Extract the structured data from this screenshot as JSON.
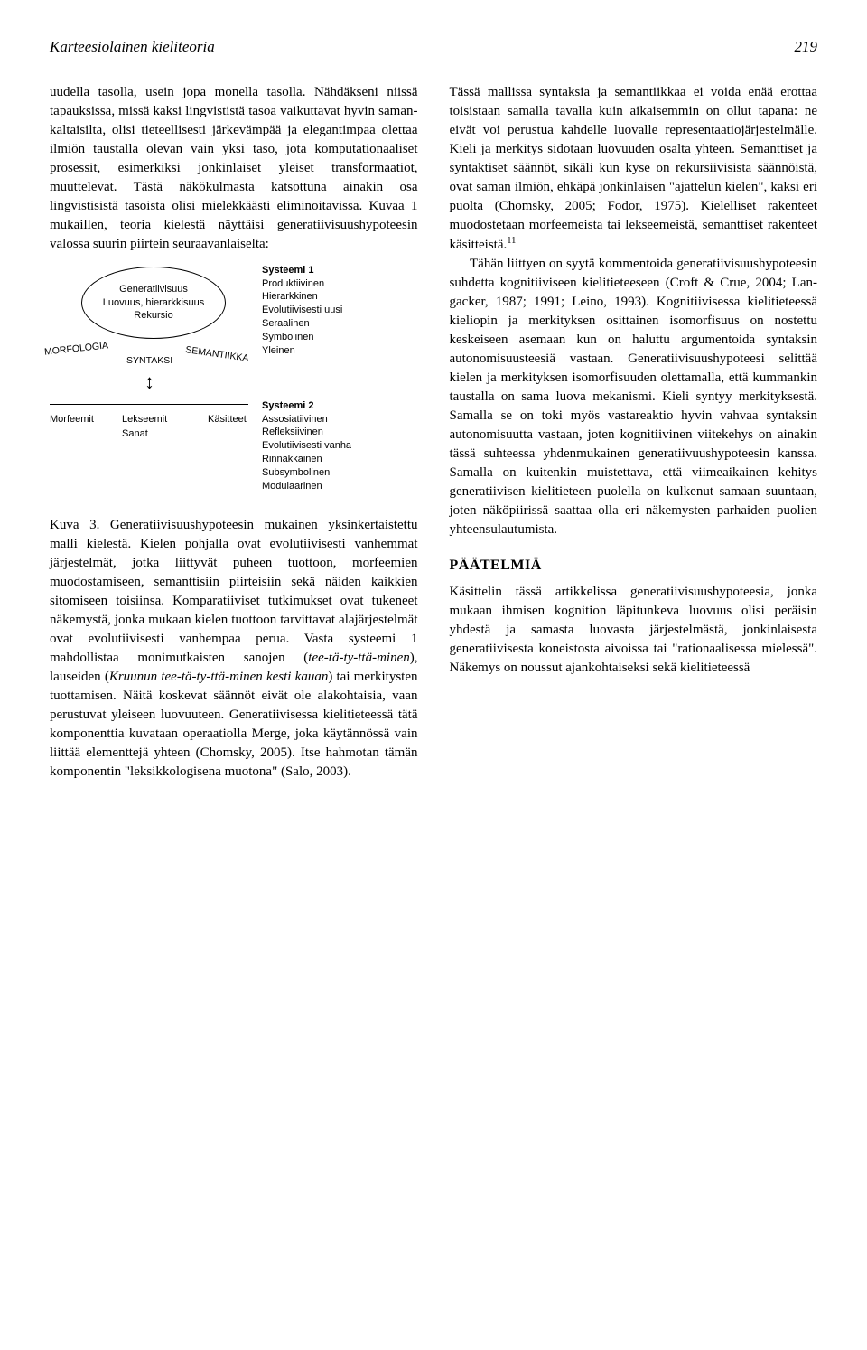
{
  "header": {
    "title": "Karteesiolainen kieliteoria",
    "page": "219"
  },
  "col1": {
    "p1": "uudella tasolla, usein jopa monella tasolla. Nähdäkseni niissä tapauksissa, missä kaksi lingvististä tasoa vaikuttavat hyvin saman­kaltaisilta, olisi tieteellisesti järkevämpää ja elegantimpaa olettaa ilmiön taustalla ole­van vain yksi taso, jota komputationaaliset prosessit, esimerkiksi jonkinlaiset yleiset transformaatiot, muuttelevat. Tästä näkö­kulmasta katsottuna ainakin osa lingvistisistä tasoista olisi mielekkäästi eliminoitavissa. Kuvaa 1 mukaillen, teoria kielestä näyttäisi generatiivisuushypoteesin valossa suurin piirtein seuraavanlaiselta:",
    "caption_lead": "Kuva 3.",
    "caption_body": " Generatiivisuushypoteesin mukainen yksinkertaistettu malli kielestä. Kielen pohjalla ovat evolutiivisesti vanhemmat järjestelmät, jotka liittyvät puheen tuottoon, morfeemien muodostamiseen, semanttisiin piirteisiin sekä näiden kaikkien sitomiseen toisiinsa. Komparatiiviset tutkimukset ovat tukeneet näkemystä, jonka mukaan kielen tuottoon tarvittavat alajärjestelmät ovat evolutiivisesti vanhempaa perua. Vasta systeemi 1 mahdollistaa monimutkaisten sanojen (",
    "caption_it1": "tee-tä-ty-ttä-minen",
    "caption_mid1": "), lauseiden (",
    "caption_it2": "Kruunun tee-tä-ty-ttä-minen kesti kauan",
    "caption_mid2": ") tai merkitysten tuottamisen. Näitä koskevat säännöt eivät ole ala­kohtaisia, vaan perustuvat yleiseen luovuuteen. Generatiivisessa kielitieteessä tätä komponenttia kuvataan operaatiolla Merge, joka käytännössä vain liittää elementtejä yhteen (Chomsky, 2005). Itse hahmotan tämän komponentin \"leksikkologisena muotona\" (Salo, 2003)."
  },
  "diagram": {
    "ellipse": {
      "l1": "Generatiivisuus",
      "l2": "Luovuus, hierarkkisuus",
      "l3": "Rekursio"
    },
    "morfologia": "MORFOLOGIA",
    "syntaksi": "SYNTAKSI",
    "semantiikka": "SEMANTIIKKA",
    "sys1": {
      "title": "Systeemi 1",
      "items": [
        "Produktiivinen",
        "Hierarkkinen",
        "Evolutiivisesti uusi",
        "Seraalinen",
        "Symbolinen",
        "Yleinen"
      ]
    },
    "row2": {
      "a": "Morfeemit",
      "b": "Lekseemit",
      "c": "Sanat",
      "d": "Käsitteet"
    },
    "sys2": {
      "title": "Systeemi 2",
      "items": [
        "Assosiatiivinen",
        "Refleksiivinen",
        "Evolutiivisesti vanha",
        "Rinnakkainen",
        "Subsymbolinen",
        "Modulaarinen"
      ]
    },
    "arrow": "↕"
  },
  "col2": {
    "p1a": "Tässä mallissa syntaksia ja semantiikkaa ei voida enää erottaa toisistaan samalla tavalla kuin aikaisemmin on ollut tapana: ne eivät voi perustua kahdelle luovalle representaa­tiojärjestelmälle. Kieli ja merkitys sidotaan luovuuden osalta yhteen. Semanttiset ja syntaktiset säännöt, sikäli kun kyse on re­kursiivisista säännöistä, ovat saman ilmiön, ehkäpä jonkinlaisen \"ajattelun kielen\", kaksi eri puolta (Chomsky, 2005; Fodor, 1975). Kielelliset rakenteet muodostetaan morfee­meista tai lekseemeistä, semanttiset rakenteet käsitteistä.",
    "sup": "11",
    "p2": "Tähän liittyen on syytä kommentoida ge­neratiivisuushypoteesin suhdetta kognitiiviseen kielitieteeseen (Croft & Crue, 2004; Lan­gacker, 1987; 1991; Leino, 1993). Kognitiivisessa kielitieteessä kieliopin ja merkityksen osittainen isomorfisuus on nostettu keskeiseen asemaan kun on haluttu argumentoida syntaksin autonomisuusteesiä vastaan. Generatiivisuushypoteesi selittää kielen ja merkityksen isomorfisuuden olettamalla, että kummankin taustalla on sama luova mekanismi. Kieli syntyy merkityksestä. Samalla se on toki myös vastareaktio hyvin vahvaa syntaksin autono­misuutta vastaan, joten kognitiivinen viitekehys on ainakin tässä suhteessa yhdenmukainen generatiivuushypoteesin kanssa. Samalla on kuitenkin muistettava, että viimeaikainen kehitys generatiivisen kielitieteen puolella on kulkenut samaan suuntaan, joten näköpiirissä saattaa olla eri näkemysten parhaiden puolien yhteensulautumista.",
    "heading": "PÄÄTELMIÄ",
    "p3": "Käsittelin tässä artikkelissa generatiivisuus­hypoteesia, jonka mukaan ihmisen kognition läpitunkeva luovuus olisi peräisin yhdestä ja samasta luovasta järjestelmästä, jonkinlaisesta generatiivisesta koneistosta aivoissa tai \"rationaalisessa mielessä\". Näkemys on noussut ajankohtaiseksi sekä kielitieteessä"
  }
}
